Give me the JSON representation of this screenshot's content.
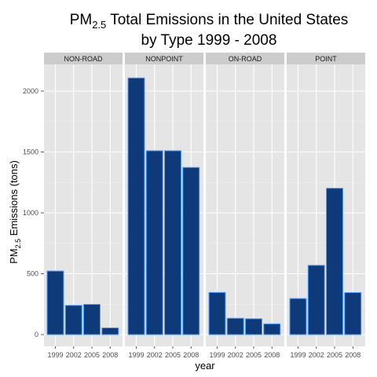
{
  "chart_data": {
    "type": "bar",
    "title": {
      "line1_main": "PM",
      "line1_sub": "2.5",
      "line1_rest": " Total Emissions in the United States",
      "line2": "by Type 1999 - 2008"
    },
    "xlabel": "year",
    "ylabel": {
      "main": "PM",
      "sub": "2.5",
      "rest": " Emissions (tons)"
    },
    "categories": [
      "1999",
      "2002",
      "2005",
      "2008"
    ],
    "ylim": [
      0,
      2200
    ],
    "yticks": [
      0,
      500,
      1000,
      1500,
      2000
    ],
    "ytick_labels": [
      "0",
      "500",
      "1000",
      "1500",
      "2000"
    ],
    "grid": true,
    "colors": {
      "bar_fill": "#0e3a7a",
      "bar_stroke": "#4a9bff",
      "panel_bg": "#e5e5e5",
      "strip_bg": "#cccccc",
      "grid_major": "#ffffff",
      "grid_minor": "#f2f2f2"
    },
    "panels": [
      {
        "name": "NON-ROAD",
        "values": [
          522,
          240,
          248,
          55
        ]
      },
      {
        "name": "NONPOINT",
        "values": [
          2108,
          1510,
          1510,
          1373
        ]
      },
      {
        "name": "ON-ROAD",
        "values": [
          346,
          134,
          130,
          88
        ]
      },
      {
        "name": "POINT",
        "values": [
          296,
          569,
          1202,
          345
        ]
      }
    ]
  }
}
